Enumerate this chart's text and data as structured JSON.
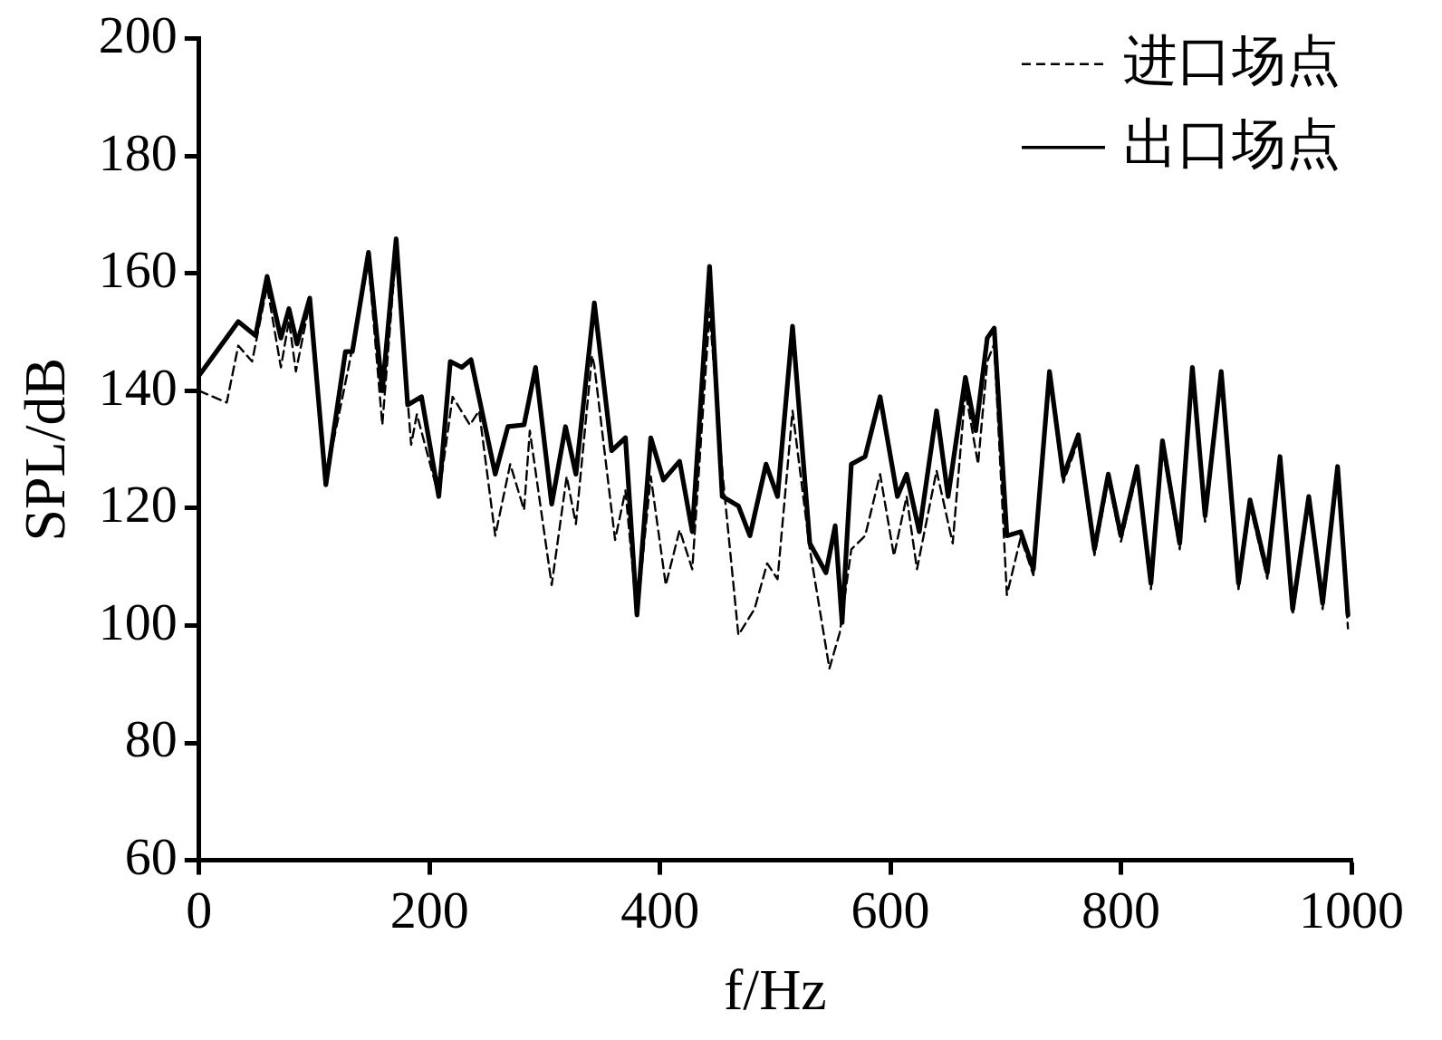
{
  "chart_data": {
    "type": "line",
    "xlabel": "f/Hz",
    "ylabel": "SPL/dB",
    "xlim": [
      0,
      1000
    ],
    "xticks": [
      0,
      200,
      400,
      600,
      800,
      1000
    ],
    "ylim": [
      60,
      200
    ],
    "yticks": [
      60,
      80,
      100,
      120,
      140,
      160,
      180,
      200
    ],
    "grid": false,
    "legend": "top right",
    "marker": "none",
    "series": [
      {
        "name": "进口场点",
        "color": "#000000",
        "line_style": "dashed",
        "x": [
          0,
          24,
          34,
          46,
          59,
          71,
          78,
          84,
          96,
          110,
          130,
          147,
          159,
          171,
          184,
          189,
          208,
          220,
          235,
          243,
          257,
          270,
          282,
          287,
          306,
          319,
          327,
          341,
          343,
          361,
          370,
          380,
          392,
          405,
          417,
          428,
          443,
          454,
          468,
          482,
          493,
          502,
          515,
          530,
          547,
          556,
          566,
          578,
          591,
          603,
          614,
          623,
          640,
          654,
          665,
          676,
          684,
          690,
          701,
          713,
          724,
          738,
          750,
          763,
          777,
          789,
          800,
          814,
          826,
          836,
          851,
          862,
          873,
          887,
          902,
          912,
          927,
          938,
          949,
          963,
          975,
          988,
          997
        ],
        "values": [
          140,
          138,
          147.7,
          145,
          157.8,
          144,
          152,
          143.3,
          155,
          125,
          144.3,
          162,
          134.2,
          164,
          130.8,
          136,
          122,
          139,
          134.2,
          136.6,
          115.3,
          127.5,
          119.7,
          133.2,
          106.9,
          125.4,
          117.3,
          146,
          144.3,
          114.6,
          123,
          101.8,
          125.4,
          106.9,
          116.3,
          109.6,
          153.4,
          126.4,
          98.4,
          102.8,
          110.6,
          107.9,
          136.6,
          113,
          92.7,
          98.8,
          113,
          115.3,
          125.8,
          111.9,
          122,
          109.6,
          126.4,
          114,
          140,
          127.5,
          145,
          148,
          105.2,
          115,
          108.6,
          142.3,
          124.4,
          131.5,
          112,
          124.8,
          114.3,
          126.1,
          106.2,
          130.5,
          113,
          143,
          117.7,
          142.3,
          106.2,
          120.4,
          108,
          127.8,
          101.8,
          121,
          102.8,
          126.1,
          99.5
        ]
      },
      {
        "name": "出口场点",
        "color": "#000000",
        "line_style": "solid",
        "x": [
          0,
          34,
          49,
          59,
          71,
          78,
          85,
          96,
          110,
          127,
          133,
          147,
          159,
          171,
          181,
          193,
          208,
          218,
          228,
          236,
          257,
          268,
          282,
          292,
          306,
          318,
          327,
          343,
          358,
          370,
          380,
          392,
          403,
          417,
          428,
          443,
          454,
          468,
          478,
          492,
          502,
          515,
          530,
          544,
          552,
          558,
          566,
          578,
          591,
          606,
          614,
          625,
          640,
          650,
          665,
          674,
          684,
          690,
          701,
          713,
          724,
          738,
          750,
          763,
          777,
          789,
          800,
          814,
          826,
          836,
          851,
          862,
          873,
          887,
          902,
          912,
          927,
          938,
          949,
          963,
          975,
          988,
          997
        ],
        "values": [
          142.6,
          151.8,
          149.4,
          159.5,
          149,
          154,
          148,
          155.8,
          124,
          146.7,
          146.7,
          163.6,
          140,
          165.9,
          137.6,
          139,
          122,
          145,
          144,
          145.3,
          125.8,
          133.9,
          134.2,
          144,
          120.7,
          133.9,
          125.8,
          155,
          129.8,
          132,
          101.8,
          132,
          124.8,
          128,
          116,
          161.2,
          122,
          120.4,
          115.3,
          127.5,
          122,
          151,
          114,
          109,
          117,
          100.5,
          127.5,
          128.8,
          139,
          122,
          125.8,
          116,
          136.6,
          122,
          142.3,
          133.2,
          149,
          150.7,
          115.3,
          116,
          109.6,
          143.3,
          125.4,
          132.5,
          113,
          125.8,
          115.3,
          127.1,
          107.2,
          131.5,
          114,
          144,
          118.7,
          143.3,
          107.2,
          121.4,
          109,
          128.8,
          102.8,
          122,
          103.8,
          127.1,
          101.8
        ]
      }
    ]
  }
}
